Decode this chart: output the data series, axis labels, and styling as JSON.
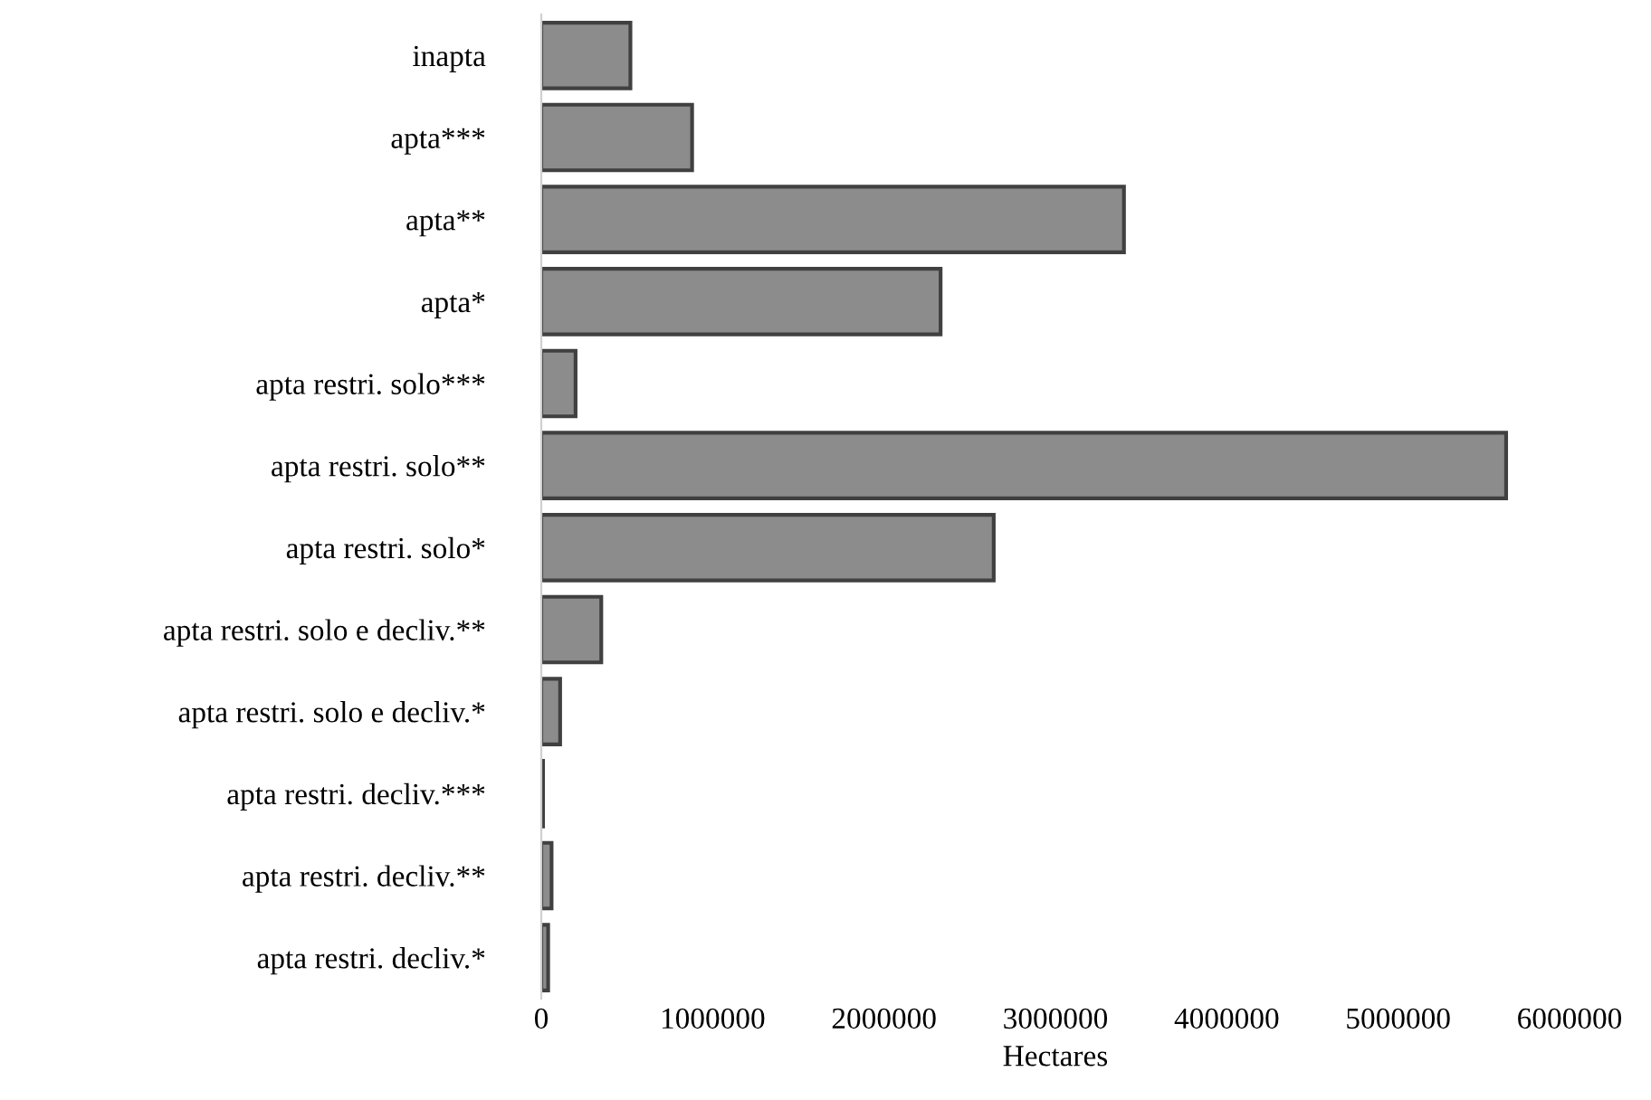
{
  "chart_data": {
    "type": "bar",
    "orientation": "horizontal",
    "xlabel": "Hectares",
    "categories": [
      "inapta",
      "apta***",
      "apta**",
      "apta*",
      "apta restri. solo***",
      "apta restri. solo**",
      "apta restri. solo*",
      "apta restri. solo e decliv.**",
      "apta restri. solo e decliv.*",
      "apta restri. decliv.***",
      "apta restri. decliv.**",
      "apta restri. decliv.*"
    ],
    "values": [
      520000,
      880000,
      3400000,
      2330000,
      200000,
      5630000,
      2640000,
      350000,
      110000,
      10000,
      60000,
      40000
    ],
    "color": "#8c8c8c",
    "xlim": [
      0,
      6000000
    ],
    "xticks": [
      0,
      1000000,
      2000000,
      3000000,
      4000000,
      5000000,
      6000000
    ],
    "grid": false
  }
}
